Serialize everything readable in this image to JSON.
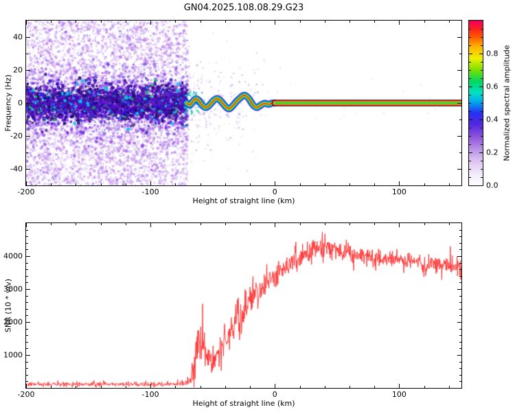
{
  "title": "GN04.2025.108.08.29.G23",
  "chart_data": [
    {
      "type": "heatmap",
      "title": "GN04.2025.108.08.29.G23",
      "xlabel": "Height of straight line (km)",
      "ylabel": "Frequency (Hz)",
      "xlim": [
        -200,
        150
      ],
      "ylim": [
        -50,
        50
      ],
      "xticks": [
        -200,
        -100,
        0,
        100
      ],
      "xminor_step": 20,
      "yticks": [
        -40,
        -20,
        0,
        20,
        40
      ],
      "yminor_step": 10,
      "grid": false,
      "legend": false,
      "colorbar": {
        "label": "Normalized spectral amplitude",
        "ticks": [
          "0.0",
          "0.2",
          "0.4",
          "0.6",
          "0.8"
        ],
        "tick_values": [
          0,
          0.2,
          0.4,
          0.6,
          0.8
        ],
        "minor_step": 0.05,
        "lim": [
          0,
          1
        ],
        "colormap_stops": [
          [
            0.0,
            "#ffffff"
          ],
          [
            0.07,
            "#f3eafa"
          ],
          [
            0.15,
            "#dcc2f0"
          ],
          [
            0.23,
            "#b489e4"
          ],
          [
            0.3,
            "#8a50dc"
          ],
          [
            0.37,
            "#5228e0"
          ],
          [
            0.44,
            "#2730f0"
          ],
          [
            0.5,
            "#00a0f0"
          ],
          [
            0.56,
            "#00e0c8"
          ],
          [
            0.63,
            "#00d860"
          ],
          [
            0.7,
            "#78e000"
          ],
          [
            0.77,
            "#eef000"
          ],
          [
            0.84,
            "#ffb400"
          ],
          [
            0.9,
            "#ff5a00"
          ],
          [
            0.95,
            "#ff1e1e"
          ],
          [
            1.0,
            "#ef0060"
          ]
        ]
      },
      "regions": {
        "noise_speckle": {
          "x_range": [
            -200,
            -70
          ],
          "y_range": [
            -50,
            50
          ],
          "center_band_sigma_hz": 5.5,
          "description": "broadband light-purple speckle noise with dense dark blue-violet band centered at 0 Hz"
        },
        "signal_trace": {
          "x_range": [
            -71,
            0
          ],
          "amplitude_hz": 5,
          "keypoints": [
            [
              -71,
              0
            ],
            [
              -68.5,
              -2
            ],
            [
              -66,
              1
            ],
            [
              -63,
              3
            ],
            [
              -60.5,
              1
            ],
            [
              -58,
              -2
            ],
            [
              -55,
              -3
            ],
            [
              -52,
              -1
            ],
            [
              -49,
              2
            ],
            [
              -46,
              3
            ],
            [
              -43,
              1
            ],
            [
              -40,
              -2
            ],
            [
              -37,
              -4
            ],
            [
              -34,
              -2
            ],
            [
              -31,
              1
            ],
            [
              -28,
              3
            ],
            [
              -25,
              5
            ],
            [
              -22,
              4
            ],
            [
              -19.5,
              1
            ],
            [
              -17,
              -2
            ],
            [
              -14,
              -3
            ],
            [
              -11,
              -1
            ],
            [
              -8,
              0
            ],
            [
              -5,
              -1
            ],
            [
              -2.5,
              0
            ],
            [
              0,
              0
            ]
          ],
          "description": "meandering narrow high-amplitude signal trace, rainbow layered (blue/cyan/green/yellow rim, red core)"
        },
        "carrier_line": {
          "x_range": [
            0,
            150
          ],
          "y_hz": 0,
          "description": "straight narrow carrier line at 0 Hz with dark edges and red/yellow/green core"
        }
      }
    },
    {
      "type": "line",
      "title": "",
      "xlabel": "Height of straight line (km)",
      "ylabel": "SNR (10 * v/v)",
      "xlim": [
        -200,
        150
      ],
      "ylim": [
        0,
        5000
      ],
      "xticks": [
        -200,
        -100,
        0,
        100
      ],
      "xminor_step": 20,
      "yticks": [
        1000,
        2000,
        3000,
        4000
      ],
      "yminor_step": 200,
      "grid": false,
      "legend": false,
      "series": [
        {
          "name": "SNR",
          "color": "#ff2d2d",
          "keypoints_x_mean_noise": [
            [
              -200,
              110,
              70
            ],
            [
              -160,
              115,
              70
            ],
            [
              -120,
              115,
              70
            ],
            [
              -90,
              120,
              70
            ],
            [
              -78,
              125,
              75
            ],
            [
              -72,
              140,
              90
            ],
            [
              -68,
              260,
              180
            ],
            [
              -65,
              650,
              450
            ],
            [
              -63,
              1400,
              700
            ],
            [
              -61,
              1600,
              650
            ],
            [
              -59,
              1200,
              550
            ],
            [
              -56,
              950,
              400
            ],
            [
              -53,
              820,
              320
            ],
            [
              -50,
              900,
              380
            ],
            [
              -47,
              880,
              360
            ],
            [
              -44,
              1150,
              480
            ],
            [
              -41,
              1550,
              600
            ],
            [
              -38,
              1400,
              520
            ],
            [
              -35,
              1650,
              600
            ],
            [
              -32,
              2050,
              700
            ],
            [
              -29,
              2250,
              780
            ],
            [
              -26,
              2400,
              620
            ],
            [
              -23,
              2550,
              520
            ],
            [
              -20,
              2700,
              500
            ],
            [
              -17,
              2800,
              490
            ],
            [
              -14,
              2880,
              460
            ],
            [
              -11,
              2980,
              450
            ],
            [
              -7,
              3080,
              420
            ],
            [
              -3,
              3220,
              410
            ],
            [
              0,
              3320,
              400
            ],
            [
              4,
              3480,
              400
            ],
            [
              8,
              3620,
              390
            ],
            [
              12,
              3760,
              380
            ],
            [
              16,
              3870,
              390
            ],
            [
              20,
              3960,
              400
            ],
            [
              24,
              4060,
              360
            ],
            [
              28,
              4140,
              350
            ],
            [
              32,
              4200,
              340
            ],
            [
              36,
              4240,
              330
            ],
            [
              40,
              4260,
              330
            ],
            [
              45,
              4210,
              310
            ],
            [
              50,
              4160,
              310
            ],
            [
              55,
              4100,
              300
            ],
            [
              60,
              4060,
              300
            ],
            [
              70,
              4010,
              290
            ],
            [
              80,
              3960,
              285
            ],
            [
              90,
              3900,
              280
            ],
            [
              100,
              3860,
              275
            ],
            [
              110,
              3810,
              270
            ],
            [
              120,
              3760,
              265
            ],
            [
              130,
              3720,
              262
            ],
            [
              140,
              3700,
              260
            ],
            [
              150,
              3640,
              255
            ]
          ]
        }
      ]
    }
  ]
}
